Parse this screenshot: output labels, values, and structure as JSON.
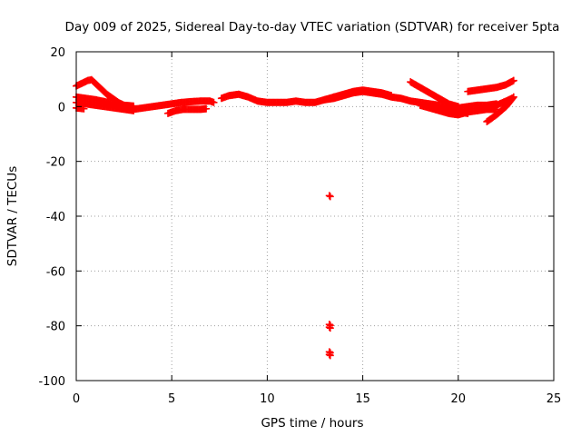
{
  "chart_data": {
    "type": "scatter",
    "title": "Day 009 of 2025, Sidereal Day-to-day VTEC variation (SDTVAR) for receiver 5pta",
    "xlabel": "GPS time / hours",
    "ylabel": "SDTVAR / TECUs",
    "xlim": [
      0,
      25
    ],
    "ylim": [
      -100,
      20
    ],
    "xticks": [
      "0",
      "5",
      "10",
      "15",
      "20",
      "25"
    ],
    "yticks": [
      "20",
      "0",
      "-20",
      "-40",
      "-60",
      "-80",
      "-100"
    ],
    "grid": true,
    "marker": "+",
    "colors": {
      "series": "#ff0000",
      "grid": "#a0a0a0",
      "frame": "#000000"
    },
    "series": [
      {
        "name": "SDTVAR",
        "segments": [
          [
            [
              0.0,
              7.5
            ],
            [
              0.3,
              8.5
            ],
            [
              0.6,
              9.5
            ],
            [
              0.8,
              9.8
            ],
            [
              1.0,
              8.5
            ],
            [
              1.3,
              6.5
            ],
            [
              1.6,
              4.5
            ],
            [
              1.9,
              3.0
            ],
            [
              2.2,
              1.5
            ],
            [
              2.5,
              0.5
            ],
            [
              2.8,
              0.0
            ]
          ],
          [
            [
              0.0,
              3.5
            ],
            [
              0.5,
              3.0
            ],
            [
              1.0,
              2.5
            ],
            [
              1.5,
              1.8
            ],
            [
              2.0,
              1.0
            ],
            [
              2.5,
              0.5
            ],
            [
              3.0,
              0.2
            ]
          ],
          [
            [
              0.0,
              1.5
            ],
            [
              0.5,
              1.0
            ],
            [
              1.0,
              0.5
            ],
            [
              1.5,
              0.0
            ],
            [
              2.0,
              -0.5
            ],
            [
              2.5,
              -1.0
            ],
            [
              3.0,
              -1.5
            ]
          ],
          [
            [
              0.0,
              -0.5
            ],
            [
              0.4,
              -0.8
            ]
          ],
          [
            [
              3.0,
              -1.0
            ],
            [
              3.5,
              -0.5
            ],
            [
              4.0,
              0.0
            ],
            [
              4.5,
              0.5
            ],
            [
              5.0,
              1.0
            ],
            [
              5.5,
              1.5
            ],
            [
              6.0,
              1.8
            ],
            [
              6.5,
              2.0
            ],
            [
              7.0,
              2.0
            ],
            [
              7.2,
              1.5
            ]
          ],
          [
            [
              4.8,
              -2.5
            ],
            [
              5.2,
              -1.5
            ],
            [
              5.6,
              -1.0
            ],
            [
              6.0,
              -1.0
            ],
            [
              6.5,
              -1.0
            ],
            [
              6.8,
              -0.8
            ]
          ],
          [
            [
              7.6,
              3.0
            ],
            [
              8.0,
              4.0
            ],
            [
              8.5,
              4.5
            ],
            [
              9.0,
              3.5
            ],
            [
              9.5,
              2.0
            ],
            [
              10.0,
              1.5
            ],
            [
              10.5,
              1.5
            ],
            [
              11.0,
              1.5
            ],
            [
              11.5,
              2.0
            ],
            [
              12.0,
              1.5
            ],
            [
              12.5,
              1.5
            ],
            [
              13.0,
              2.5
            ],
            [
              13.5,
              3.5
            ]
          ],
          [
            [
              13.0,
              2.5
            ],
            [
              13.5,
              3.0
            ],
            [
              14.0,
              4.0
            ],
            [
              14.5,
              5.0
            ],
            [
              15.0,
              5.5
            ],
            [
              15.5,
              5.0
            ],
            [
              16.0,
              4.5
            ],
            [
              16.5,
              3.5
            ],
            [
              17.0,
              3.0
            ],
            [
              17.5,
              2.0
            ],
            [
              18.0,
              1.5
            ],
            [
              18.5,
              1.0
            ],
            [
              19.0,
              0.5
            ],
            [
              19.5,
              -1.0
            ],
            [
              20.0,
              -2.0
            ],
            [
              20.5,
              -2.5
            ]
          ],
          [
            [
              13.5,
              3.5
            ],
            [
              14.0,
              4.5
            ],
            [
              14.5,
              5.5
            ],
            [
              15.0,
              6.0
            ],
            [
              15.5,
              5.5
            ],
            [
              16.0,
              5.0
            ],
            [
              16.5,
              4.0
            ]
          ],
          [
            [
              17.5,
              9.0
            ],
            [
              18.0,
              7.0
            ],
            [
              18.5,
              5.0
            ],
            [
              19.0,
              3.0
            ],
            [
              19.5,
              1.0
            ],
            [
              20.0,
              0.0
            ]
          ],
          [
            [
              18.0,
              0.5
            ],
            [
              18.5,
              -0.5
            ],
            [
              19.0,
              -1.5
            ],
            [
              19.5,
              -2.5
            ],
            [
              20.0,
              -3.0
            ],
            [
              20.5,
              -2.0
            ],
            [
              21.0,
              -1.5
            ],
            [
              21.5,
              -1.0
            ],
            [
              22.0,
              -1.0
            ]
          ],
          [
            [
              19.5,
              0.0
            ],
            [
              20.0,
              -0.5
            ],
            [
              20.5,
              0.0
            ],
            [
              21.0,
              0.5
            ],
            [
              21.5,
              0.5
            ],
            [
              22.0,
              1.0
            ]
          ],
          [
            [
              20.5,
              5.5
            ],
            [
              21.0,
              6.0
            ],
            [
              21.5,
              6.5
            ],
            [
              22.0,
              7.0
            ],
            [
              22.5,
              8.0
            ],
            [
              22.9,
              9.5
            ]
          ],
          [
            [
              21.5,
              -5.5
            ],
            [
              22.0,
              -3.0
            ],
            [
              22.5,
              0.0
            ],
            [
              22.9,
              3.5
            ]
          ],
          [
            [
              21.0,
              -1.5
            ],
            [
              21.5,
              -0.5
            ],
            [
              22.0,
              0.5
            ],
            [
              22.5,
              2.0
            ],
            [
              22.8,
              3.0
            ]
          ]
        ],
        "outliers": [
          [
            13.25,
            -32.5
          ],
          [
            13.25,
            -79.5
          ],
          [
            13.25,
            -80.5
          ],
          [
            13.25,
            -89.5
          ],
          [
            13.25,
            -90.5
          ]
        ]
      }
    ]
  }
}
